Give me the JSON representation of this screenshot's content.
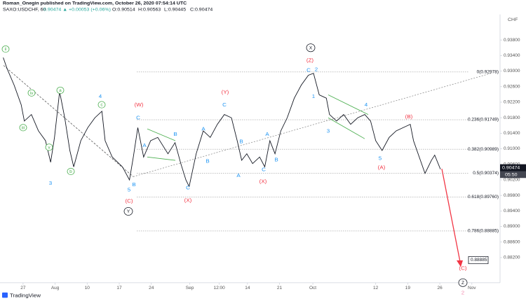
{
  "chart_data": {
    "type": "line",
    "title": "Roman_Onegin published on TradingView.com, October 26, 2020 07:54:14 UTC",
    "subtitle": "SAXO:USDCHF, 60",
    "quote": "0.90474 ▲ +0.00053 (+0.06%)",
    "ohlc": [
      "O:0.90514",
      "H:0.90563",
      "L:0.90445",
      "C:0.90474"
    ],
    "currency": "CHF",
    "footer": "TradingView",
    "last_price": "0.90474",
    "last_time": "05:50",
    "target_price": "0.88885",
    "xlim": [
      -3.6,
      74.4
    ],
    "ylim": [
      0.87554,
      0.9446
    ],
    "xticks": [
      {
        "value": 0,
        "label": "27"
      },
      {
        "value": 5,
        "label": "Aug"
      },
      {
        "value": 10,
        "label": "10"
      },
      {
        "value": 15,
        "label": "17"
      },
      {
        "value": 20,
        "label": "24"
      },
      {
        "value": 26,
        "label": "Sep"
      },
      {
        "value": 30.6,
        "label": "12:00"
      },
      {
        "value": 35,
        "label": "14"
      },
      {
        "value": 40,
        "label": "21"
      },
      {
        "value": 45.2,
        "label": "Oct"
      },
      {
        "value": 55,
        "label": "12"
      },
      {
        "value": 60,
        "label": "19"
      },
      {
        "value": 65,
        "label": "26"
      },
      {
        "value": 70,
        "label": "Nov"
      }
    ],
    "yticks": [
      {
        "value": 0.938,
        "label": "0.93800"
      },
      {
        "value": 0.934,
        "label": "0.93400"
      },
      {
        "value": 0.93,
        "label": "0.93000"
      },
      {
        "value": 0.926,
        "label": "0.92600"
      },
      {
        "value": 0.922,
        "label": "0.92200"
      },
      {
        "value": 0.918,
        "label": "0.91800"
      },
      {
        "value": 0.914,
        "label": "0.91400"
      },
      {
        "value": 0.91,
        "label": "0.91000"
      },
      {
        "value": 0.906,
        "label": "0.90600"
      },
      {
        "value": 0.902,
        "label": "0.90200"
      },
      {
        "value": 0.898,
        "label": "0.89800"
      },
      {
        "value": 0.894,
        "label": "0.89400"
      },
      {
        "value": 0.89,
        "label": "0.89000"
      },
      {
        "value": 0.886,
        "label": "0.88600"
      },
      {
        "value": 0.882,
        "label": "0.88200"
      }
    ],
    "x": [
      -3.1,
      -2.5,
      -1.4,
      -0.3,
      0.2,
      1.3,
      2.4,
      3.5,
      4.3,
      4.9,
      5.7,
      6.5,
      7.3,
      7.9,
      9.0,
      10.1,
      11.2,
      12.3,
      12.8,
      13.9,
      15.5,
      16.6,
      17.2,
      17.9,
      18.8,
      19.9,
      21.0,
      22.6,
      23.7,
      24.6,
      25.4,
      25.9,
      27.0,
      28.1,
      29.2,
      30.3,
      31.4,
      32.5,
      33.4,
      34.1,
      34.9,
      35.8,
      36.9,
      37.7,
      38.5,
      39.3,
      40.2,
      41.2,
      42.3,
      43.4,
      44.5,
      45.3,
      46.2,
      47.3,
      47.8,
      48.9,
      50.0,
      51.1,
      52.2,
      53.3,
      54.2,
      55.0,
      56.0,
      57.1,
      58.2,
      59.3,
      60.4,
      60.9,
      61.8,
      62.7,
      63.7,
      64.2,
      65.1
    ],
    "series": [
      {
        "name": "SAXO:USDCHF",
        "color": "#131722",
        "values": [
          0.93349,
          0.93062,
          0.92641,
          0.92136,
          0.91715,
          0.91883,
          0.91462,
          0.91209,
          0.90653,
          0.91294,
          0.92473,
          0.91799,
          0.90957,
          0.90536,
          0.91209,
          0.91546,
          0.91799,
          0.91967,
          0.91209,
          0.90788,
          0.90536,
          0.90199,
          0.90788,
          0.91546,
          0.90788,
          0.91209,
          0.91294,
          0.90873,
          0.91159,
          0.9062,
          0.90199,
          0.9003,
          0.90873,
          0.91462,
          0.91294,
          0.91631,
          0.91883,
          0.91799,
          0.91209,
          0.90704,
          0.90873,
          0.9062,
          0.90788,
          0.90536,
          0.91209,
          0.90873,
          0.91462,
          0.91799,
          0.92304,
          0.92641,
          0.92894,
          0.92944,
          0.92389,
          0.92304,
          0.91883,
          0.91715,
          0.91883,
          0.91631,
          0.91799,
          0.91883,
          0.91715,
          0.91209,
          0.90957,
          0.91294,
          0.91462,
          0.91546,
          0.91631,
          0.91209,
          0.90788,
          0.90367,
          0.90705,
          0.90839,
          0.90474
        ]
      }
    ],
    "fib_levels": [
      {
        "value": 0.92978,
        "label": "0(0.92978)"
      },
      {
        "value": 0.91749,
        "label": "0.236(0.91749)"
      },
      {
        "value": 0.90989,
        "label": "0.382(0.90989)"
      },
      {
        "value": 0.90374,
        "label": "0.5(0.90374)"
      },
      {
        "value": 0.8976,
        "label": "0.618(0.89760)"
      },
      {
        "value": 0.88885,
        "label": "0.786(0.88885)"
      }
    ],
    "annotations": [
      {
        "text": "ii",
        "color": "#4caf50",
        "circled": true
      },
      {
        "text": "iv",
        "color": "#4caf50",
        "circled": true
      },
      {
        "text": "iii",
        "color": "#4caf50",
        "circled": true
      },
      {
        "text": "v",
        "color": "#4caf50",
        "circled": true
      },
      {
        "text": "a",
        "color": "#4caf50",
        "circled": true
      },
      {
        "text": "b",
        "color": "#4caf50",
        "circled": true
      },
      {
        "text": "c",
        "color": "#4caf50",
        "circled": true
      },
      {
        "text": "3",
        "color": "#2196f3"
      },
      {
        "text": "4",
        "color": "#2196f3"
      },
      {
        "text": "C",
        "color": "#2196f3"
      },
      {
        "text": "A",
        "color": "#2196f3"
      },
      {
        "text": "B",
        "color": "#2196f3"
      },
      {
        "text": "B",
        "color": "#2196f3"
      },
      {
        "text": "5",
        "color": "#2196f3"
      },
      {
        "text": "C",
        "color": "#2196f3"
      },
      {
        "text": "A",
        "color": "#2196f3"
      },
      {
        "text": "B",
        "color": "#2196f3"
      },
      {
        "text": "C",
        "color": "#2196f3"
      },
      {
        "text": "B",
        "color": "#2196f3"
      },
      {
        "text": "A",
        "color": "#2196f3"
      },
      {
        "text": "A",
        "color": "#2196f3"
      },
      {
        "text": "C",
        "color": "#2196f3"
      },
      {
        "text": "B",
        "color": "#2196f3"
      },
      {
        "text": "C",
        "color": "#2196f3"
      },
      {
        "text": "2",
        "color": "#2196f3"
      },
      {
        "text": "1",
        "color": "#2196f3"
      },
      {
        "text": "3",
        "color": "#2196f3"
      },
      {
        "text": "4",
        "color": "#2196f3"
      },
      {
        "text": "5",
        "color": "#2196f3"
      },
      {
        "text": "(W)",
        "color": "#f23645"
      },
      {
        "text": "(C)",
        "color": "#f23645"
      },
      {
        "text": "(X)",
        "color": "#f23645"
      },
      {
        "text": "(Y)",
        "color": "#f23645"
      },
      {
        "text": "(X)",
        "color": "#f23645"
      },
      {
        "text": "(Z)",
        "color": "#f23645"
      },
      {
        "text": "(B)",
        "color": "#f23645"
      },
      {
        "text": "(A)",
        "color": "#f23645"
      },
      {
        "text": "(C)",
        "color": "#f23645"
      },
      {
        "text": "X",
        "color": "#131722",
        "circled": true
      },
      {
        "text": "Y",
        "color": "#131722",
        "circled": true
      },
      {
        "text": "Z",
        "color": "#131722",
        "circled": true
      },
      {
        "text": "2",
        "color": "#f48fb1"
      }
    ]
  }
}
